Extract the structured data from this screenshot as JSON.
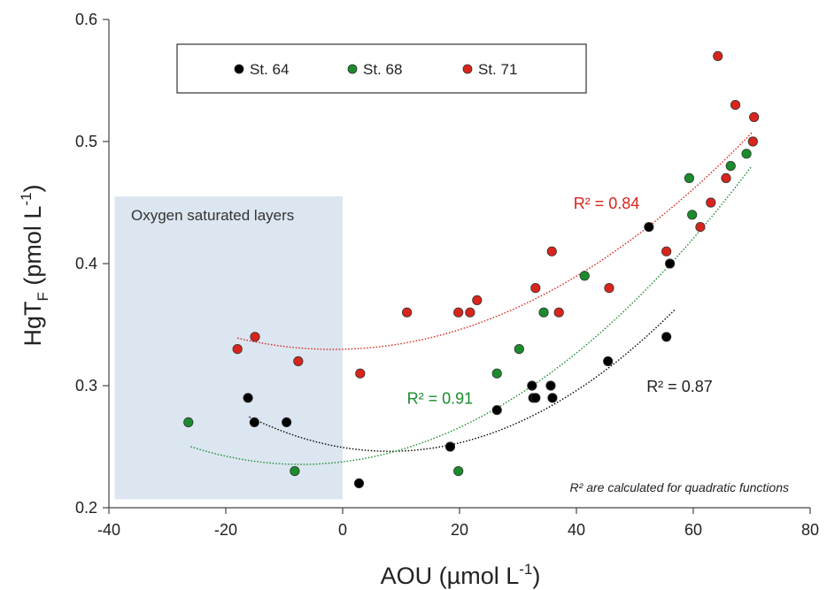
{
  "chart_data": {
    "type": "scatter",
    "xlabel": "AOU (µmol L",
    "xlabel_sup": "-1",
    "xlabel_end": ")",
    "ylabel": "HgT",
    "ylabel_sub": "F",
    "ylabel_mid": " (pmol L",
    "ylabel_sup": "-1",
    "ylabel_end": ")",
    "xlim": [
      -40,
      80
    ],
    "ylim": [
      0.2,
      0.6
    ],
    "xticks": [
      -40,
      -20,
      0,
      20,
      40,
      60,
      80
    ],
    "xtick_labels": [
      "-40",
      "-20",
      "0",
      "20",
      "40",
      "60",
      "80"
    ],
    "yticks": [
      0.2,
      0.3,
      0.4,
      0.5,
      0.6
    ],
    "ytick_labels": [
      "0.2",
      "0.3",
      "0.4",
      "0.5",
      "0.6"
    ],
    "grid": false,
    "legend_position": "top-left",
    "region": {
      "label": "Oxygen saturated layers",
      "x0": -39,
      "x1": 0,
      "y0": 0.207,
      "y1": 0.455,
      "color": "#dce6f1"
    },
    "note": "R² are calculated for quadratic functions",
    "series": [
      {
        "name": "St. 64",
        "color": "#000000",
        "r2_label": "R² = 0.87",
        "r2_pos": [
          52,
          0.295
        ],
        "fit_range": [
          -16,
          57
        ],
        "fit": [
          4.878e-05,
          -0.000787,
          0.2494
        ],
        "x": [
          -16.2,
          -15.1,
          -9.6,
          2.8,
          18.4,
          26.4,
          32.4,
          32.6,
          33.0,
          35.6,
          35.9,
          45.4,
          52.4,
          55.4,
          56.0
        ],
        "y": [
          0.29,
          0.27,
          0.27,
          0.22,
          0.25,
          0.28,
          0.3,
          0.29,
          0.29,
          0.3,
          0.29,
          0.32,
          0.43,
          0.34,
          0.4
        ]
      },
      {
        "name": "St. 68",
        "color": "#1a8c2c",
        "r2_label": "R² = 0.91",
        "r2_pos": [
          11,
          0.285
        ],
        "fit_range": [
          -26,
          70
        ],
        "fit": [
          4.104e-05,
          0.000588,
          0.2376
        ],
        "x": [
          -26.4,
          -8.2,
          19.8,
          26.4,
          30.2,
          34.4,
          41.4,
          59.3,
          59.8,
          66.4,
          69.1
        ],
        "y": [
          0.27,
          0.23,
          0.23,
          0.31,
          0.33,
          0.36,
          0.39,
          0.47,
          0.44,
          0.48,
          0.49
        ]
      },
      {
        "name": "St. 71",
        "color": "#d9241c",
        "r2_label": "R² = 0.84",
        "r2_pos": [
          39.5,
          0.445
        ],
        "fit_range": [
          -18,
          70
        ],
        "fit": [
          3.46e-05,
          0.000112,
          0.3298
        ],
        "x": [
          -18.0,
          -15.0,
          -7.6,
          3.0,
          11.0,
          19.8,
          21.8,
          23.0,
          33.0,
          35.8,
          37.0,
          45.6,
          55.4,
          61.2,
          63.0,
          64.2,
          65.6,
          67.2,
          70.2,
          70.4
        ],
        "y": [
          0.33,
          0.34,
          0.32,
          0.31,
          0.36,
          0.36,
          0.36,
          0.37,
          0.38,
          0.41,
          0.36,
          0.38,
          0.41,
          0.43,
          0.45,
          0.57,
          0.47,
          0.53,
          0.5,
          0.52
        ]
      }
    ]
  }
}
